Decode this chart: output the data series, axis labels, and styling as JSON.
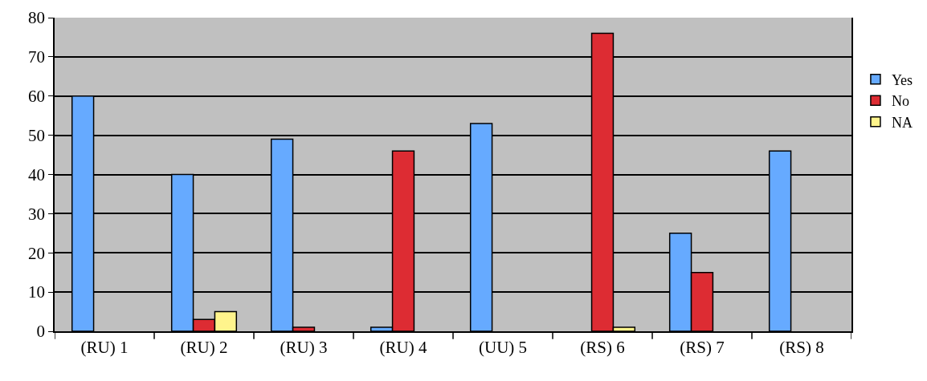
{
  "chart_data": {
    "type": "bar",
    "categories": [
      "(RU) 1",
      "(RU) 2",
      "(RU) 3",
      "(RU) 4",
      "(UU) 5",
      "(RS) 6",
      "(RS) 7",
      "(RS) 8"
    ],
    "series": [
      {
        "name": "Yes",
        "color": "#66aaff",
        "values": [
          60,
          40,
          49,
          1,
          53,
          null,
          25,
          46
        ]
      },
      {
        "name": "No",
        "color": "#dd2c33",
        "values": [
          null,
          3,
          1,
          46,
          null,
          76,
          15,
          null
        ]
      },
      {
        "name": "NA",
        "color": "#fff48c",
        "values": [
          null,
          5,
          null,
          null,
          null,
          1,
          null,
          null
        ]
      }
    ],
    "ylim": [
      0,
      80
    ],
    "yticks": [
      0,
      10,
      20,
      30,
      40,
      50,
      60,
      70,
      80
    ],
    "grid": "y",
    "legend": "right"
  }
}
